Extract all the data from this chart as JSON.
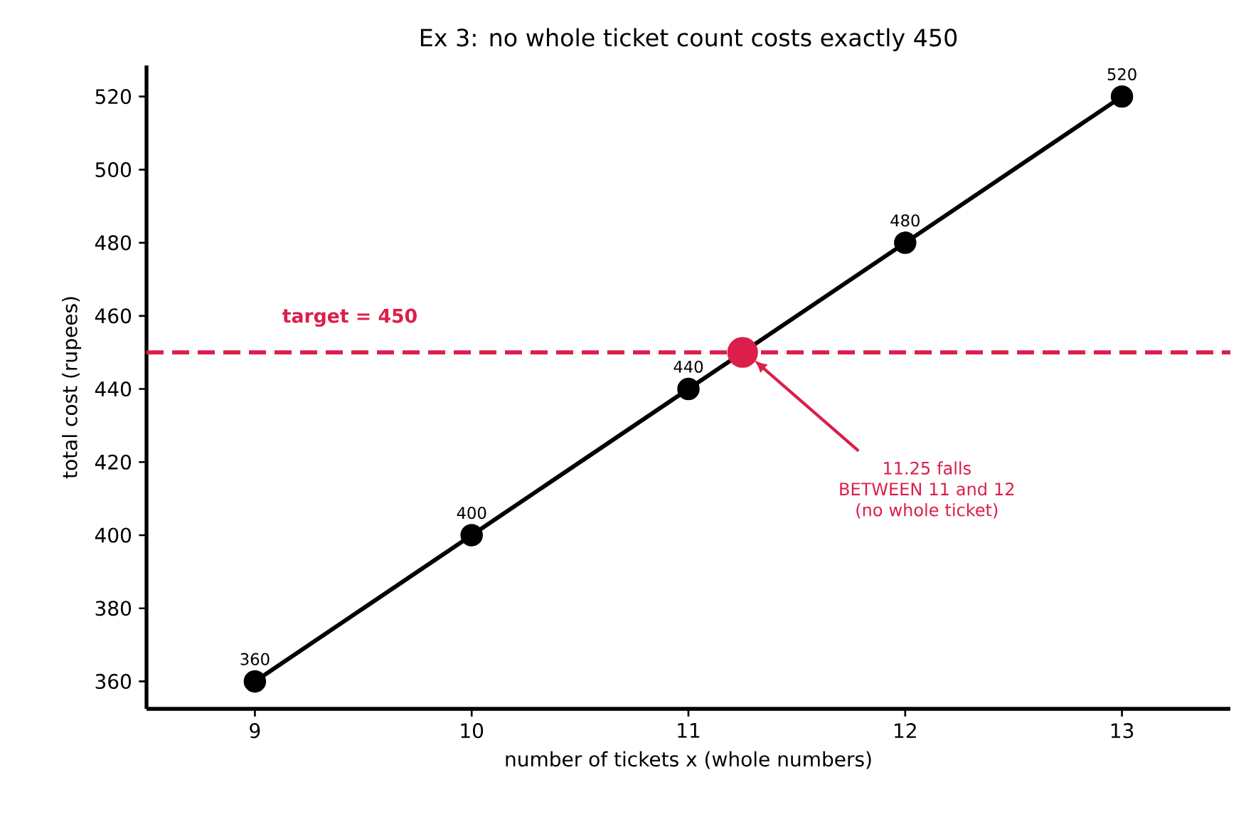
{
  "chart_data": {
    "type": "line",
    "title": "Ex 3: no whole ticket count costs exactly 450",
    "xlabel": "number of tickets x (whole numbers)",
    "ylabel": "total cost (rupees)",
    "series": [
      {
        "color": "#000000",
        "x": [
          9,
          10,
          11,
          12,
          13
        ],
        "values": [
          360,
          400,
          440,
          480,
          520
        ],
        "value_labels": [
          "360",
          "400",
          "440",
          "480",
          "520"
        ],
        "marker": "circle",
        "line_style": "solid"
      },
      {
        "type": "scatter",
        "color": "#dc1f4a",
        "x": [
          11.25
        ],
        "values": [
          450
        ],
        "marker": "circle"
      }
    ],
    "xlim": [
      8.5,
      13.5
    ],
    "ylim": [
      352.5,
      528.5
    ],
    "xticks": [
      9,
      10,
      11,
      12,
      13
    ],
    "yticks": [
      360,
      380,
      400,
      420,
      440,
      460,
      480,
      500,
      520
    ],
    "ref_lines": [
      {
        "axis": "y",
        "value": 450,
        "label": "target = 450",
        "color": "#dc1f4a",
        "line_style": "dashed"
      }
    ],
    "annotations": [
      "11.25 falls\nBETWEEN 11 and 12\n(no whole ticket)"
    ],
    "grid": false
  }
}
